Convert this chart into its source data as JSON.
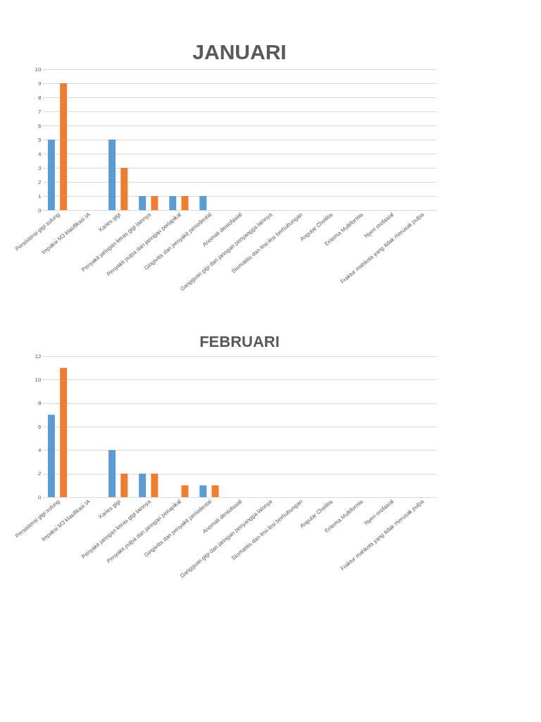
{
  "chart_data": [
    {
      "type": "bar",
      "title": "JANUARI",
      "categories": [
        "Persistensi gigi sulung",
        "Impaksi M3 klasifikasi IA",
        "Karies gigi",
        "Penyakit jaringan keras gigi lainnya",
        "Penyakit pulpa dan jaringan periapikal",
        "Gingivitis dan penyakit periodental",
        "Anomali dentofasial",
        "Gangguan gigi dan jaringan penyangga lainnya",
        "Stomatitis dan lesi-lesi berhubungan",
        "Angular Cheilitis",
        "Eritema Multiformis",
        "Nyeri orofasial",
        "Fraktur mahkota yang tidak merusak pulpa"
      ],
      "series": [
        {
          "color": "#5b9bd5",
          "values": [
            5,
            0,
            5,
            1,
            1,
            1,
            0,
            0,
            0,
            0,
            0,
            0,
            0
          ]
        },
        {
          "color": "#ed7d31",
          "values": [
            9,
            0,
            3,
            1,
            1,
            0,
            0,
            0,
            0,
            0,
            0,
            0,
            0
          ]
        }
      ],
      "ylim": [
        0,
        10
      ],
      "yticks": [
        0,
        1,
        2,
        3,
        4,
        5,
        6,
        7,
        8,
        9,
        10
      ],
      "grid": "y",
      "legend": false
    },
    {
      "type": "bar",
      "title": "FEBRUARI",
      "categories": [
        "Persistensi gigi sulung",
        "Impaksi M3 klasifikasi IA",
        "Karies gigi",
        "Penyakit jaringan keras gigi lainnya",
        "Penyakit pulpa dan jaringan periapikal",
        "Gingivitis dan penyakit periodental",
        "Anomali dentofasial",
        "Gangguan gigi dan jaringan penyangga lainnya",
        "Stomatitis dan lesi-lesi berhubungan",
        "Angular Cheilitis",
        "Eritema Multiformis",
        "Nyeri orofasial",
        "Fraktur mahkota yang tidak merusak pulpa"
      ],
      "series": [
        {
          "color": "#5b9bd5",
          "values": [
            7,
            0,
            4,
            2,
            0,
            1,
            0,
            0,
            0,
            0,
            0,
            0,
            0
          ]
        },
        {
          "color": "#ed7d31",
          "values": [
            11,
            0,
            2,
            2,
            1,
            1,
            0,
            0,
            0,
            0,
            0,
            0,
            0
          ]
        }
      ],
      "ylim": [
        0,
        12
      ],
      "yticks": [
        0,
        2,
        4,
        6,
        8,
        10,
        12
      ],
      "grid": "y",
      "legend": false
    }
  ]
}
